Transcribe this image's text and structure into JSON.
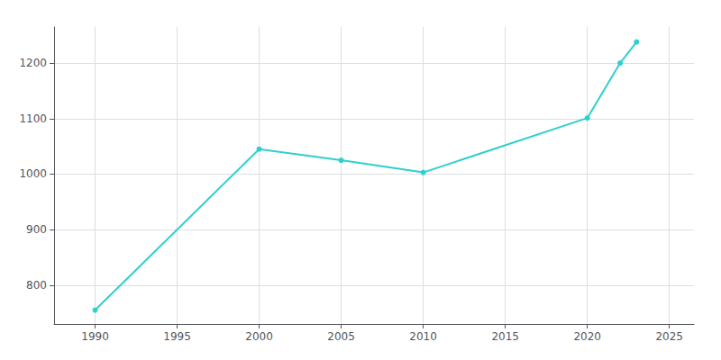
{
  "chart_data": {
    "type": "line",
    "x": [
      1990,
      2000,
      2005,
      2010,
      2020,
      2022,
      2023
    ],
    "values": [
      755,
      1045,
      1025,
      1003,
      1101,
      1200,
      1238
    ],
    "color": "#2ecfcf",
    "marker": "circle",
    "xlim": [
      1987.5,
      2026.5
    ],
    "ylim": [
      730,
      1265
    ],
    "xticks": [
      1990,
      1995,
      2000,
      2005,
      2010,
      2015,
      2020,
      2025
    ],
    "yticks": [
      800,
      900,
      1000,
      1100,
      1200
    ],
    "grid": true
  }
}
